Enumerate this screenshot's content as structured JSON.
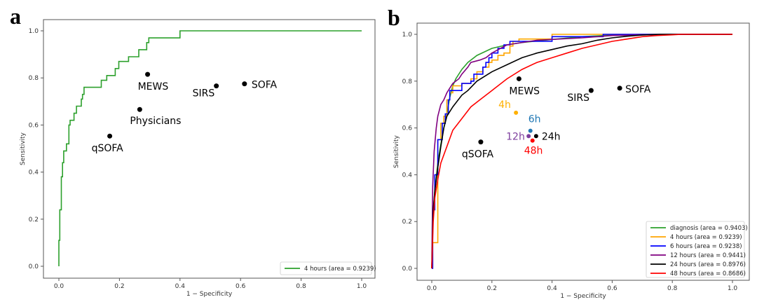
{
  "chart_data": [
    {
      "panel": "a",
      "type": "line",
      "title": "",
      "xlabel": "1 − Specificity",
      "ylabel": "Sensitivity",
      "xlim": [
        0.0,
        1.0
      ],
      "ylim": [
        0.0,
        1.0
      ],
      "xticks": [
        "0.0",
        "0.2",
        "0.4",
        "0.6",
        "0.8",
        "1.0"
      ],
      "yticks": [
        "0.0",
        "0.2",
        "0.4",
        "0.6",
        "0.8",
        "1.0"
      ],
      "grid": false,
      "legend_position": "bottom-right",
      "series": [
        {
          "name": "4 hours (area = 0.9239)",
          "color": "#2ca02c",
          "step": true,
          "x": [
            0.0,
            0.0,
            0.003,
            0.003,
            0.008,
            0.008,
            0.012,
            0.012,
            0.016,
            0.016,
            0.02,
            0.02,
            0.025,
            0.025,
            0.033,
            0.033,
            0.037,
            0.037,
            0.05,
            0.05,
            0.058,
            0.058,
            0.074,
            0.074,
            0.078,
            0.078,
            0.083,
            0.083,
            0.14,
            0.14,
            0.158,
            0.158,
            0.186,
            0.186,
            0.198,
            0.198,
            0.23,
            0.23,
            0.264,
            0.264,
            0.29,
            0.29,
            0.297,
            0.297,
            0.4,
            0.4,
            1.0
          ],
          "y": [
            0.0,
            0.11,
            0.11,
            0.24,
            0.24,
            0.38,
            0.38,
            0.44,
            0.44,
            0.49,
            0.49,
            0.49,
            0.49,
            0.52,
            0.52,
            0.6,
            0.6,
            0.62,
            0.62,
            0.65,
            0.65,
            0.68,
            0.68,
            0.71,
            0.71,
            0.73,
            0.73,
            0.76,
            0.76,
            0.79,
            0.79,
            0.81,
            0.81,
            0.84,
            0.84,
            0.87,
            0.87,
            0.89,
            0.89,
            0.92,
            0.92,
            0.95,
            0.95,
            0.97,
            0.97,
            1.0,
            1.0
          ]
        }
      ],
      "points": [
        {
          "label": "MEWS",
          "x": 0.293,
          "y": 0.815,
          "color": "#000000"
        },
        {
          "label": "Physicians",
          "x": 0.267,
          "y": 0.666,
          "color": "#000000"
        },
        {
          "label": "qSOFA",
          "x": 0.168,
          "y": 0.553,
          "color": "#000000"
        },
        {
          "label": "SIRS",
          "x": 0.52,
          "y": 0.766,
          "color": "#000000"
        },
        {
          "label": "SOFA",
          "x": 0.613,
          "y": 0.775,
          "color": "#000000"
        }
      ]
    },
    {
      "panel": "b",
      "type": "line",
      "title": "",
      "xlabel": "1 − Specificity",
      "ylabel": "Sensitivity",
      "xlim": [
        0.0,
        1.0
      ],
      "ylim": [
        0.0,
        1.0
      ],
      "xticks": [
        "0.0",
        "0.2",
        "0.4",
        "0.6",
        "0.8",
        "1.0"
      ],
      "yticks": [
        "0.0",
        "0.2",
        "0.4",
        "0.6",
        "0.8",
        "1.0"
      ],
      "grid": false,
      "legend_position": "bottom-right",
      "series": [
        {
          "name": "diagnosis (area = 0.9403)",
          "color": "#2ca02c",
          "step": false,
          "x": [
            0.0,
            0.005,
            0.01,
            0.02,
            0.03,
            0.04,
            0.05,
            0.06,
            0.07,
            0.08,
            0.1,
            0.12,
            0.15,
            0.2,
            0.25,
            0.3,
            0.4,
            0.5,
            0.6,
            0.7,
            0.8,
            1.0
          ],
          "y": [
            0.0,
            0.25,
            0.33,
            0.45,
            0.53,
            0.6,
            0.66,
            0.73,
            0.78,
            0.81,
            0.85,
            0.88,
            0.91,
            0.94,
            0.955,
            0.965,
            0.978,
            0.99,
            0.997,
            1.0,
            1.0,
            1.0
          ]
        },
        {
          "name": "4 hours (area = 0.9239)",
          "color": "#ffa500",
          "step": true,
          "x": [
            0.0,
            0.003,
            0.003,
            0.02,
            0.02,
            0.03,
            0.03,
            0.04,
            0.04,
            0.05,
            0.05,
            0.06,
            0.06,
            0.07,
            0.07,
            0.1,
            0.1,
            0.13,
            0.13,
            0.15,
            0.15,
            0.17,
            0.17,
            0.19,
            0.19,
            0.2,
            0.2,
            0.22,
            0.22,
            0.24,
            0.24,
            0.26,
            0.26,
            0.27,
            0.27,
            0.29,
            0.29,
            0.4,
            0.4,
            1.0
          ],
          "y": [
            0.0,
            0.0,
            0.11,
            0.11,
            0.55,
            0.55,
            0.62,
            0.62,
            0.65,
            0.65,
            0.72,
            0.72,
            0.75,
            0.75,
            0.78,
            0.78,
            0.79,
            0.79,
            0.81,
            0.81,
            0.84,
            0.84,
            0.86,
            0.86,
            0.88,
            0.88,
            0.89,
            0.89,
            0.91,
            0.91,
            0.92,
            0.92,
            0.95,
            0.95,
            0.97,
            0.97,
            0.98,
            0.98,
            1.0,
            1.0
          ]
        },
        {
          "name": "6 hours (area = 0.9238)",
          "color": "#0000ff",
          "step": true,
          "x": [
            0.0,
            0.003,
            0.003,
            0.01,
            0.01,
            0.02,
            0.02,
            0.035,
            0.035,
            0.045,
            0.045,
            0.055,
            0.055,
            0.06,
            0.06,
            0.1,
            0.1,
            0.13,
            0.13,
            0.14,
            0.14,
            0.17,
            0.17,
            0.18,
            0.18,
            0.19,
            0.19,
            0.2,
            0.2,
            0.22,
            0.22,
            0.24,
            0.24,
            0.26,
            0.26,
            0.4,
            0.4,
            0.57,
            0.57,
            1.0
          ],
          "y": [
            0.0,
            0.0,
            0.25,
            0.25,
            0.4,
            0.4,
            0.55,
            0.55,
            0.62,
            0.62,
            0.66,
            0.66,
            0.72,
            0.72,
            0.76,
            0.76,
            0.79,
            0.79,
            0.8,
            0.8,
            0.83,
            0.83,
            0.86,
            0.86,
            0.88,
            0.88,
            0.9,
            0.9,
            0.92,
            0.92,
            0.94,
            0.94,
            0.955,
            0.955,
            0.97,
            0.97,
            0.99,
            0.99,
            1.0,
            1.0
          ]
        },
        {
          "name": "12 hours (area = 0.9441)",
          "color": "#800080",
          "step": false,
          "x": [
            0.0,
            0.003,
            0.008,
            0.015,
            0.02,
            0.03,
            0.04,
            0.05,
            0.06,
            0.07,
            0.08,
            0.09,
            0.1,
            0.12,
            0.13,
            0.16,
            0.18,
            0.2,
            0.25,
            0.35,
            0.5,
            0.6,
            0.8,
            1.0
          ],
          "y": [
            0.0,
            0.35,
            0.5,
            0.6,
            0.65,
            0.7,
            0.72,
            0.75,
            0.77,
            0.79,
            0.8,
            0.81,
            0.83,
            0.86,
            0.88,
            0.89,
            0.9,
            0.92,
            0.955,
            0.975,
            0.985,
            0.995,
            1.0,
            1.0
          ]
        },
        {
          "name": "24 hours (area = 0.8976)",
          "color": "#000000",
          "step": false,
          "x": [
            0.0,
            0.005,
            0.01,
            0.02,
            0.03,
            0.04,
            0.05,
            0.07,
            0.1,
            0.12,
            0.15,
            0.2,
            0.25,
            0.3,
            0.35,
            0.4,
            0.45,
            0.5,
            0.55,
            0.6,
            0.65,
            0.7,
            0.76,
            0.8,
            1.0
          ],
          "y": [
            0.0,
            0.25,
            0.33,
            0.43,
            0.52,
            0.6,
            0.65,
            0.69,
            0.74,
            0.76,
            0.8,
            0.84,
            0.87,
            0.9,
            0.92,
            0.935,
            0.95,
            0.96,
            0.975,
            0.985,
            0.992,
            0.997,
            1.0,
            1.0,
            1.0
          ]
        },
        {
          "name": "48 hours (area = 0.8686)",
          "color": "#ff0000",
          "step": false,
          "x": [
            0.0,
            0.005,
            0.01,
            0.02,
            0.03,
            0.05,
            0.07,
            0.1,
            0.13,
            0.16,
            0.2,
            0.25,
            0.3,
            0.35,
            0.4,
            0.45,
            0.5,
            0.55,
            0.6,
            0.65,
            0.7,
            0.75,
            0.8,
            0.83,
            1.0
          ],
          "y": [
            0.0,
            0.2,
            0.3,
            0.38,
            0.45,
            0.52,
            0.59,
            0.64,
            0.69,
            0.72,
            0.76,
            0.81,
            0.85,
            0.88,
            0.9,
            0.92,
            0.94,
            0.955,
            0.97,
            0.98,
            0.99,
            0.995,
            0.998,
            1.0,
            1.0
          ]
        }
      ],
      "points": [
        {
          "label": "MEWS",
          "x": 0.29,
          "y": 0.81,
          "color": "#000000",
          "label_color": "#000000"
        },
        {
          "label": "SIRS",
          "x": 0.53,
          "y": 0.76,
          "color": "#000000",
          "label_color": "#000000"
        },
        {
          "label": "SOFA",
          "x": 0.625,
          "y": 0.77,
          "color": "#000000",
          "label_color": "#000000"
        },
        {
          "label": "qSOFA",
          "x": 0.163,
          "y": 0.54,
          "color": "#000000",
          "label_color": "#000000"
        },
        {
          "label": "4h",
          "x": 0.28,
          "y": 0.665,
          "color": "#ffb000",
          "label_color": "#ffb000"
        },
        {
          "label": "6h",
          "x": 0.328,
          "y": 0.588,
          "color": "#1f77b4",
          "label_color": "#1f77b4"
        },
        {
          "label": "12h",
          "x": 0.322,
          "y": 0.565,
          "color": "#7e3f9e",
          "label_color": "#7e3f9e"
        },
        {
          "label": "24h",
          "x": 0.347,
          "y": 0.565,
          "color": "#000000",
          "label_color": "#000000"
        },
        {
          "label": "48h",
          "x": 0.335,
          "y": 0.546,
          "color": "#ff0000",
          "label_color": "#ff0000"
        }
      ]
    }
  ],
  "panels": {
    "a": {
      "letter": "a"
    },
    "b": {
      "letter": "b"
    }
  }
}
